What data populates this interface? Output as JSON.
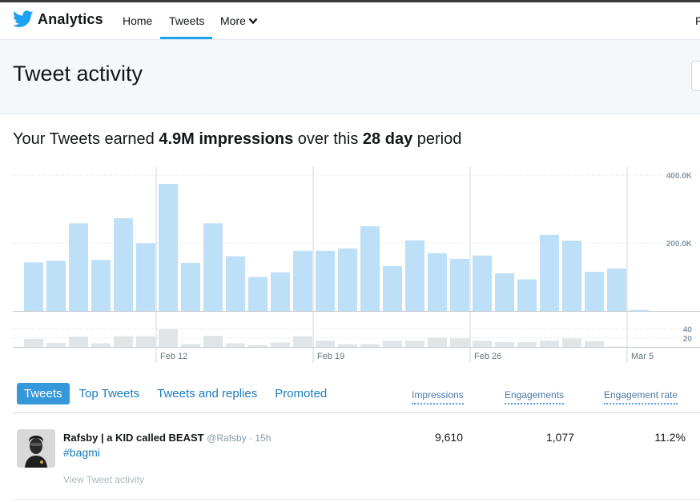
{
  "nav": {
    "brand": "Analytics",
    "items": [
      "Home",
      "Tweets",
      "More"
    ],
    "right_text": "F"
  },
  "header": {
    "title": "Tweet activity"
  },
  "summary": {
    "prefix": "Your Tweets earned",
    "impressions": "4.9M impressions",
    "middle": "over this",
    "days": "28 day",
    "suffix": "period"
  },
  "chart_data": {
    "type": "bar",
    "title": "",
    "x_ticks": [
      "Feb 12",
      "Feb 19",
      "Feb 26",
      "Mar 5"
    ],
    "impressions": {
      "y_ticks": [
        "400.0K",
        "200.0K"
      ],
      "ylim": [
        0,
        400000
      ],
      "values": [
        143000,
        148000,
        258000,
        150000,
        273000,
        199000,
        374000,
        141000,
        258000,
        161000,
        100000,
        114000,
        177000,
        177000,
        184000,
        249000,
        132000,
        208000,
        170000,
        153000,
        163000,
        111000,
        93000,
        224000,
        207000,
        115000,
        125000,
        3000
      ]
    },
    "engagements": {
      "y_ticks": [
        "40",
        "20"
      ],
      "ylim": [
        0,
        50
      ],
      "values": [
        18,
        9,
        23,
        8,
        24,
        24,
        40,
        6,
        25,
        8,
        4,
        10,
        24,
        14,
        6,
        6,
        14,
        14,
        21,
        19,
        14,
        11,
        11,
        14,
        19,
        13,
        1,
        0
      ]
    }
  },
  "tabs": {
    "items": [
      "Tweets",
      "Top Tweets",
      "Tweets and replies",
      "Promoted"
    ],
    "active": "Tweets"
  },
  "columns": {
    "impressions": "Impressions",
    "engagements": "Engagements",
    "engagement_rate": "Engagement rate"
  },
  "tweet": {
    "name": "Rafsby | a KID called BEAST",
    "handle": "@Rafsby · 15h",
    "text": "#bagmi",
    "link": "View Tweet activity",
    "impressions": "9,610",
    "engagements": "1,077",
    "engagement_rate": "11.2%"
  },
  "colors": {
    "accent": "#1da1f2",
    "bar_impressions": "#bddff7",
    "bar_engagements": "#e1e5e8",
    "tab_active": "#3498db",
    "link": "#1b7bc0"
  },
  "icons": [
    "twitter-bird-icon",
    "chevron-down-icon"
  ]
}
